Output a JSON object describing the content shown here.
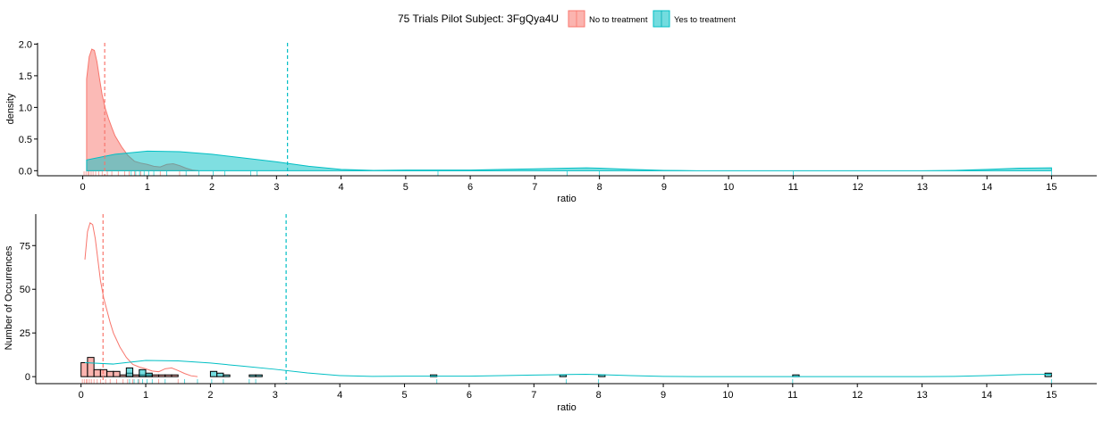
{
  "legend": {
    "title": "75 Trials Pilot Subject:  3FgQya4U",
    "position": "top",
    "entries": [
      {
        "label": "No to treatment",
        "color": "#F8766D"
      },
      {
        "label": "Yes to treatment",
        "color": "#00BFC4"
      }
    ]
  },
  "chart_data": [
    {
      "type": "area",
      "title": "",
      "xlabel": "ratio",
      "ylabel": "density",
      "xlim": [
        -0.7,
        15.7
      ],
      "ylim": [
        -0.08,
        2.02
      ],
      "x_ticks": [
        0,
        1,
        2,
        3,
        4,
        5,
        6,
        7,
        8,
        9,
        10,
        11,
        12,
        13,
        14,
        15
      ],
      "y_ticks": [
        0.0,
        0.5,
        1.0,
        1.5,
        2.0
      ],
      "y_tick_labels": [
        "0.0",
        "0.5",
        "1.0",
        "1.5",
        "2.0"
      ],
      "grid": false,
      "series": [
        {
          "name": "No to treatment",
          "color": "#F8766D",
          "mean_line": 0.34,
          "x": [
            0.06,
            0.1,
            0.14,
            0.18,
            0.22,
            0.26,
            0.3,
            0.35,
            0.4,
            0.45,
            0.5,
            0.6,
            0.7,
            0.8,
            0.9,
            1.0,
            1.1,
            1.2,
            1.3,
            1.4,
            1.5,
            1.6,
            1.7,
            1.8
          ],
          "y": [
            1.45,
            1.8,
            1.92,
            1.9,
            1.72,
            1.45,
            1.2,
            0.98,
            0.82,
            0.68,
            0.55,
            0.38,
            0.24,
            0.15,
            0.12,
            0.1,
            0.07,
            0.06,
            0.1,
            0.11,
            0.08,
            0.04,
            0.01,
            0.0
          ]
        },
        {
          "name": "Yes to treatment",
          "color": "#00BFC4",
          "mean_line": 3.17,
          "x": [
            0.06,
            0.5,
            1.0,
            1.5,
            2.0,
            2.5,
            3.0,
            3.5,
            4.0,
            4.5,
            5.0,
            5.5,
            6.0,
            6.5,
            7.0,
            7.5,
            7.8,
            8.0,
            8.5,
            9.0,
            9.5,
            10.0,
            10.5,
            11.0,
            11.5,
            12.0,
            12.5,
            13.0,
            13.5,
            14.0,
            14.5,
            15.0
          ],
          "y": [
            0.17,
            0.26,
            0.31,
            0.3,
            0.26,
            0.2,
            0.14,
            0.07,
            0.02,
            0.005,
            0.01,
            0.01,
            0.01,
            0.02,
            0.03,
            0.04,
            0.045,
            0.04,
            0.02,
            0.005,
            0.0,
            0.0,
            0.0,
            0.0,
            0.0,
            0.0,
            0.0,
            0.0,
            0.005,
            0.02,
            0.04,
            0.045
          ]
        }
      ],
      "rug_no": [
        0.02,
        0.05,
        0.08,
        0.1,
        0.13,
        0.16,
        0.2,
        0.25,
        0.3,
        0.38,
        0.45,
        0.55,
        0.65,
        0.72,
        0.8,
        0.9,
        1.2,
        1.5
      ],
      "rug_yes": [
        0.75,
        0.82,
        0.88,
        0.95,
        1.02,
        1.1,
        1.3,
        1.6,
        1.8,
        2.02,
        2.2,
        2.6,
        2.7,
        5.5,
        7.5,
        8.0,
        11.0,
        15.0
      ]
    },
    {
      "type": "bar",
      "title": "",
      "xlabel": "ratio",
      "ylabel": "Number of Occurrences",
      "xlim": [
        -0.7,
        15.7
      ],
      "ylim": [
        -4,
        93
      ],
      "x_ticks": [
        0,
        1,
        2,
        3,
        4,
        5,
        6,
        7,
        8,
        9,
        10,
        11,
        12,
        13,
        14,
        15
      ],
      "y_ticks": [
        0,
        25,
        50,
        75
      ],
      "y_tick_labels": [
        "0",
        "25",
        "50",
        "75"
      ],
      "grid": false,
      "bin_width": 0.1,
      "series": [
        {
          "name": "No to treatment",
          "color": "#F8766D",
          "mean_line": 0.34,
          "bins_x": [
            0.05,
            0.15,
            0.25,
            0.35,
            0.45,
            0.55,
            0.65,
            0.75,
            0.85,
            0.95,
            1.05,
            1.15,
            1.25,
            1.35,
            1.45
          ],
          "counts": [
            8,
            11,
            4,
            4,
            3,
            3,
            1,
            2,
            1,
            1,
            1,
            1,
            1,
            1,
            1
          ],
          "curve_x": [
            0.06,
            0.1,
            0.14,
            0.18,
            0.22,
            0.26,
            0.3,
            0.35,
            0.4,
            0.45,
            0.5,
            0.6,
            0.7,
            0.8,
            0.9,
            1.0,
            1.1,
            1.2,
            1.3,
            1.4,
            1.5,
            1.6,
            1.7,
            1.8
          ],
          "curve_y": [
            67,
            83,
            88,
            87,
            79,
            67,
            55,
            45,
            38,
            31,
            25,
            17,
            11,
            7,
            5.5,
            4.5,
            3.2,
            2.8,
            4.5,
            5,
            3.5,
            1.8,
            0.5,
            0
          ]
        },
        {
          "name": "Yes to treatment",
          "color": "#00BFC4",
          "mean_line": 3.17,
          "bins_x": [
            0.75,
            0.95,
            1.05,
            2.05,
            2.15,
            2.25,
            2.65,
            2.75,
            5.45,
            7.45,
            8.05,
            11.05,
            14.95
          ],
          "counts": [
            5,
            4,
            2,
            3,
            2,
            1,
            1,
            1,
            1,
            1,
            1,
            1,
            2
          ],
          "curve_x": [
            0.06,
            0.5,
            1.0,
            1.5,
            2.0,
            2.5,
            3.0,
            3.5,
            4.0,
            4.5,
            5.0,
            5.5,
            6.0,
            6.5,
            7.0,
            7.5,
            7.8,
            8.0,
            8.5,
            9.0,
            9.5,
            10.0,
            10.5,
            11.0,
            11.5,
            12.0,
            12.5,
            13.0,
            13.5,
            14.0,
            14.5,
            15.0
          ],
          "curve_y": [
            8,
            7.2,
            9.3,
            9,
            7.8,
            6,
            4.2,
            2.1,
            0.6,
            0.15,
            0.3,
            0.3,
            0.3,
            0.6,
            0.9,
            1.2,
            1.35,
            1.2,
            0.6,
            0.15,
            0,
            0,
            0,
            0,
            0,
            0,
            0,
            0,
            0.15,
            0.6,
            1.2,
            1.35
          ]
        }
      ],
      "rug_no": [
        0.02,
        0.05,
        0.08,
        0.1,
        0.13,
        0.16,
        0.2,
        0.25,
        0.3,
        0.38,
        0.45,
        0.55,
        0.65,
        0.72,
        0.8,
        0.9,
        1.2,
        1.5
      ],
      "rug_yes": [
        0.75,
        0.82,
        0.88,
        0.95,
        1.02,
        1.1,
        1.3,
        1.6,
        1.8,
        2.02,
        2.2,
        2.6,
        2.7,
        5.5,
        7.5,
        8.0,
        11.0,
        15.0
      ]
    }
  ]
}
